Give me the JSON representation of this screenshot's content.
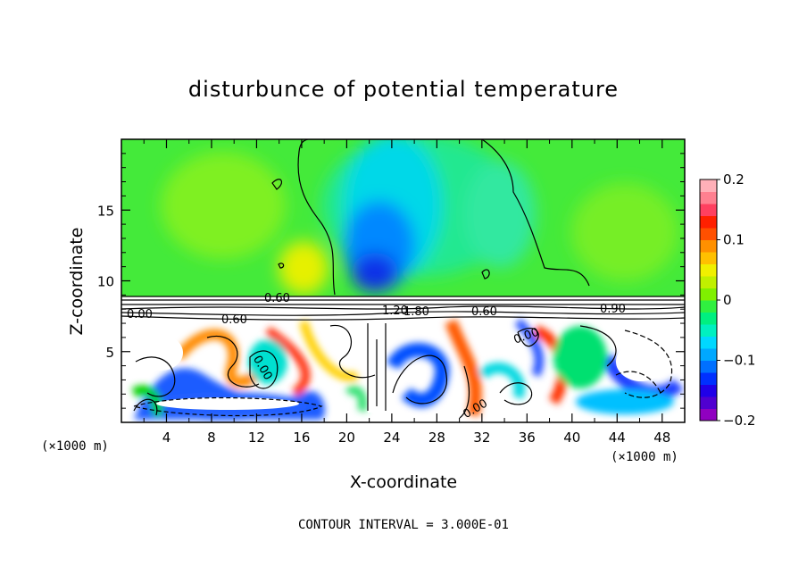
{
  "chart_data": {
    "type": "heatmap",
    "title": "disturbunce of potential temperature",
    "xlabel": "X-coordinate",
    "ylabel": "Z-coordinate",
    "x_unit": "(×1000 m)",
    "z_unit": "(×1000 m)",
    "xlim": [
      0,
      50
    ],
    "ylim": [
      0,
      20
    ],
    "x_ticks": [
      4,
      8,
      12,
      16,
      20,
      24,
      28,
      32,
      36,
      40,
      44,
      48
    ],
    "y_ticks": [
      5,
      10,
      15
    ],
    "colorbar": {
      "range": [
        -0.2,
        0.2
      ],
      "tick_values": [
        -0.2,
        -0.1,
        0,
        0.1,
        0.2
      ],
      "tick_labels": [
        "−0.2",
        "−0.1",
        "0",
        "0.1",
        "0.2"
      ],
      "colors": [
        "#9000c0",
        "#5000d0",
        "#2000e8",
        "#0030ff",
        "#0070ff",
        "#00a8ff",
        "#00d8ff",
        "#00f0c0",
        "#00f080",
        "#30f040",
        "#80f000",
        "#c0f000",
        "#f0f000",
        "#ffc000",
        "#ff9000",
        "#ff5000",
        "#ff2000",
        "#ff4060",
        "#ff8090",
        "#ffb0b8"
      ]
    },
    "contour_labels": [
      "0.00",
      "0.60",
      "0.60",
      "1.20",
      "1.80",
      "0.60",
      "0.00",
      "0.90",
      "0.00",
      "0.00"
    ],
    "contour_interval": "CONTOUR INTERVAL = 3.000E-01"
  }
}
